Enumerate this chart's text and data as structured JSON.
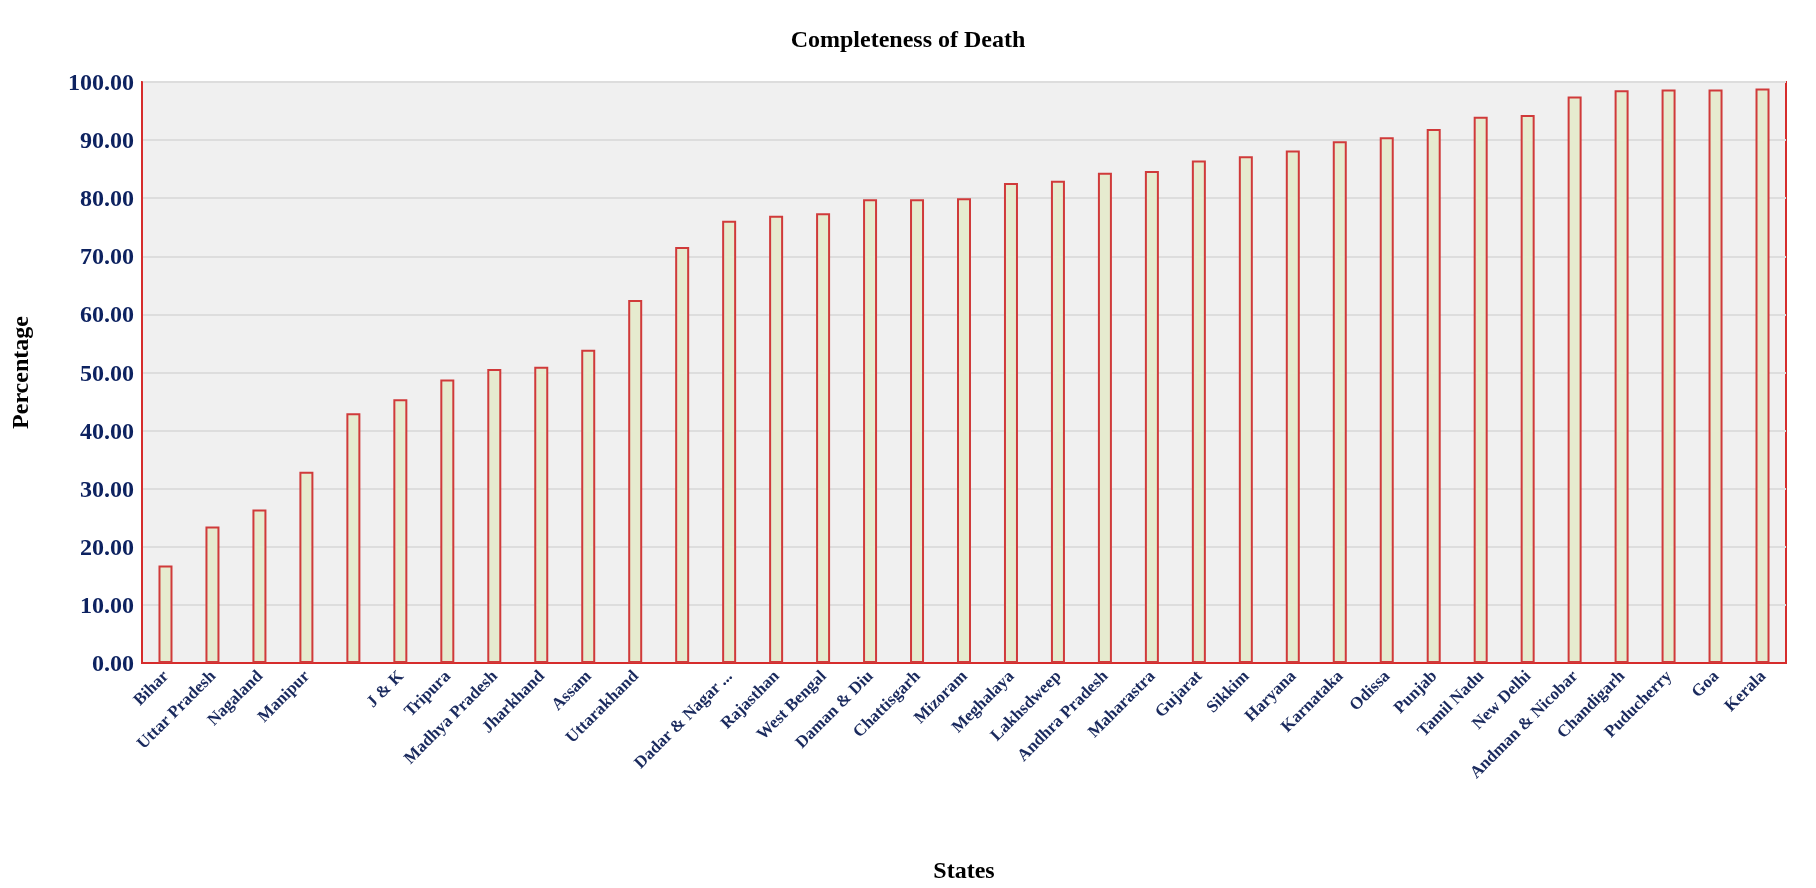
{
  "chart_data": {
    "type": "bar",
    "title": "Completeness of Death",
    "xlabel": "States",
    "ylabel": "Percentage",
    "categories": [
      "Bihar",
      "Uttar Pradesh",
      "Nagaland",
      "Manipur",
      null,
      "J & K",
      "Tripura",
      "Madhya Pradesh",
      "Jharkhand",
      "Assam",
      "Uttarakhand",
      null,
      "Dadar & Nagar ...",
      "Rajasthan",
      "West Bengal",
      "Daman & Diu",
      "Chattisgarh",
      "Mizoram",
      "Meghalaya",
      "Lakhsdweep",
      "Andhra Pradesh",
      "Maharastra",
      "Gujarat",
      "Sikkim",
      "Haryana",
      "Karnataka",
      "Odissa",
      "Punjab",
      "Tamil Nadu",
      "New Delhi",
      "Andman & Nicobar",
      "Chandigarh",
      "Puducherry",
      "Goa",
      "Kerala"
    ],
    "values": [
      16.8,
      23.5,
      26.4,
      32.9,
      43.0,
      45.4,
      48.8,
      50.6,
      51.0,
      53.9,
      62.5,
      71.6,
      76.1,
      77.0,
      77.4,
      79.8,
      79.8,
      80.0,
      82.6,
      83.0,
      84.4,
      84.7,
      86.5,
      87.2,
      88.2,
      89.8,
      90.5,
      91.9,
      94.0,
      94.3,
      97.5,
      98.6,
      98.7,
      98.7,
      98.9
    ],
    "color": "#e6ebcf",
    "ylim": [
      0,
      100
    ],
    "yticks": [
      {
        "value": 0,
        "label": "0.00"
      },
      {
        "value": 10,
        "label": "10.00"
      },
      {
        "value": 20,
        "label": "20.00"
      },
      {
        "value": 30,
        "label": "30.00"
      },
      {
        "value": 40,
        "label": "40.00"
      },
      {
        "value": 50,
        "label": "50.00"
      },
      {
        "value": 60,
        "label": "60.00"
      },
      {
        "value": 70,
        "label": "70.00"
      },
      {
        "value": 80,
        "label": "80.00"
      },
      {
        "value": 90,
        "label": "90.00"
      },
      {
        "value": 100,
        "label": "100.00"
      }
    ],
    "grid": "y"
  }
}
